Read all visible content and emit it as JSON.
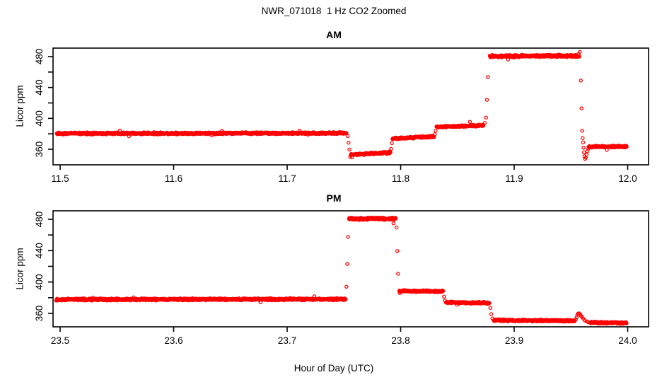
{
  "title": "NWR_071018  1 Hz CO2 Zoomed",
  "x_axis_label": "Hour of Day (UTC)",
  "colors": {
    "points": "#FF0000",
    "axis": "#000000",
    "background": "#FFFFFF"
  },
  "marker": "open-circle",
  "chart_data": [
    {
      "type": "scatter",
      "panel": "AM",
      "title": "AM",
      "ylabel": "Licor ppm",
      "xlabel": "",
      "grid": false,
      "legend": null,
      "xlim": [
        11.49,
        12.02
      ],
      "ylim": [
        340,
        491
      ],
      "x_ticks": [
        {
          "v": 11.5,
          "label": "11.5"
        },
        {
          "v": 11.6,
          "label": "11.6"
        },
        {
          "v": 11.7,
          "label": "11.7"
        },
        {
          "v": 11.8,
          "label": "11.8"
        },
        {
          "v": 11.9,
          "label": "11.9"
        },
        {
          "v": 12.0,
          "label": "12.0"
        }
      ],
      "y_ticks": [
        {
          "v": 360,
          "label": "360"
        },
        {
          "v": 380,
          "label": ""
        },
        {
          "v": 400,
          "label": "400"
        },
        {
          "v": 420,
          "label": ""
        },
        {
          "v": 440,
          "label": "440"
        },
        {
          "v": 460,
          "label": ""
        },
        {
          "v": 480,
          "label": "480"
        }
      ],
      "series": [
        {
          "name": "1 Hz CO2",
          "sample_rate_hz": 1,
          "segments": [
            {
              "t0": 11.497,
              "t1": 11.7524,
              "v0": 380.5,
              "v1": 380.9,
              "noise": 1.5
            },
            {
              "t0": 11.756,
              "t1": 11.791,
              "v0": 353.0,
              "v1": 355.8,
              "noise": 1.5
            },
            {
              "t0": 11.7928,
              "t1": 11.8295,
              "v0": 373.8,
              "v1": 376.5,
              "noise": 1.4
            },
            {
              "t0": 11.8315,
              "t1": 11.873,
              "v0": 388.8,
              "v1": 391.0,
              "noise": 1.4
            },
            {
              "t0": 11.8785,
              "t1": 11.9575,
              "v0": 480.6,
              "v1": 480.9,
              "noise": 1.8
            },
            {
              "t0": 11.9655,
              "t1": 11.999,
              "v0": 363.3,
              "v1": 363.6,
              "noise": 1.4
            }
          ],
          "transition_points": [
            [
              11.7534,
              377.0
            ],
            [
              11.7541,
              368.5
            ],
            [
              11.7549,
              359.5
            ],
            [
              11.7556,
              350.5
            ],
            [
              11.757,
              349.5
            ],
            [
              11.7916,
              360.5
            ],
            [
              11.7922,
              367.8
            ],
            [
              11.8301,
              379.5
            ],
            [
              11.8308,
              384.0
            ],
            [
              11.874,
              394.0
            ],
            [
              11.8752,
              401.0
            ],
            [
              11.876,
              424.0
            ],
            [
              11.8768,
              453.5
            ],
            [
              11.9568,
              483.5
            ],
            [
              11.9578,
              486.0
            ],
            [
              11.9587,
              449.0
            ],
            [
              11.9593,
              413.0
            ],
            [
              11.9599,
              384.0
            ],
            [
              11.9603,
              374.5
            ],
            [
              11.9607,
              369.0
            ],
            [
              11.9611,
              362.0
            ],
            [
              11.9615,
              356.0
            ],
            [
              11.9619,
              351.0
            ],
            [
              11.9624,
              347.5
            ],
            [
              11.9631,
              349.0
            ],
            [
              11.9638,
              353.0
            ],
            [
              11.9645,
              357.5
            ],
            [
              11.9652,
              360.5
            ],
            [
              11.9659,
              362.5
            ]
          ]
        }
      ]
    },
    {
      "type": "scatter",
      "panel": "PM",
      "title": "PM",
      "ylabel": "Licor ppm",
      "xlabel": "Hour of Day (UTC)",
      "grid": false,
      "legend": null,
      "xlim": [
        23.49,
        24.02
      ],
      "ylim": [
        343,
        491
      ],
      "x_ticks": [
        {
          "v": 23.5,
          "label": "23.5"
        },
        {
          "v": 23.6,
          "label": "23.6"
        },
        {
          "v": 23.7,
          "label": "23.7"
        },
        {
          "v": 23.8,
          "label": "23.8"
        },
        {
          "v": 23.9,
          "label": "23.9"
        },
        {
          "v": 24.0,
          "label": "24.0"
        }
      ],
      "y_ticks": [
        {
          "v": 360,
          "label": "360"
        },
        {
          "v": 380,
          "label": ""
        },
        {
          "v": 400,
          "label": "400"
        },
        {
          "v": 420,
          "label": ""
        },
        {
          "v": 440,
          "label": "440"
        },
        {
          "v": 460,
          "label": ""
        },
        {
          "v": 480,
          "label": "480"
        }
      ],
      "series": [
        {
          "name": "1 Hz CO2",
          "sample_rate_hz": 1,
          "segments": [
            {
              "t0": 23.4965,
              "t1": 23.7515,
              "v0": 377.7,
              "v1": 378.1,
              "noise": 1.5
            },
            {
              "t0": 23.7545,
              "t1": 23.7955,
              "v0": 480.6,
              "v1": 480.9,
              "noise": 1.8
            },
            {
              "t0": 23.7988,
              "t1": 23.8375,
              "v0": 388.6,
              "v1": 388.0,
              "noise": 1.4
            },
            {
              "t0": 23.8398,
              "t1": 23.8782,
              "v0": 374.0,
              "v1": 373.2,
              "noise": 1.4
            },
            {
              "t0": 23.882,
              "t1": 23.9535,
              "v0": 351.2,
              "v1": 350.7,
              "noise": 1.4
            },
            {
              "t0": 23.9668,
              "t1": 23.999,
              "v0": 348.3,
              "v1": 347.8,
              "noise": 1.4
            }
          ],
          "transition_points": [
            [
              23.7522,
              394.0
            ],
            [
              23.7529,
              423.0
            ],
            [
              23.7537,
              457.5
            ],
            [
              23.7963,
              469.5
            ],
            [
              23.797,
              439.5
            ],
            [
              23.7977,
              410.5
            ],
            [
              23.7992,
              386.0
            ],
            [
              23.8382,
              381.5
            ],
            [
              23.839,
              376.5
            ],
            [
              23.879,
              367.0
            ],
            [
              23.8798,
              359.0
            ],
            [
              23.8808,
              353.5
            ],
            [
              23.9543,
              352.5
            ],
            [
              23.955,
              355.0
            ],
            [
              23.9557,
              358.0
            ],
            [
              23.9564,
              359.8
            ],
            [
              23.9572,
              360.0
            ],
            [
              23.958,
              358.8
            ],
            [
              23.9589,
              357.0
            ],
            [
              23.9598,
              355.2
            ],
            [
              23.9609,
              353.2
            ],
            [
              23.9622,
              351.2
            ],
            [
              23.9637,
              349.8
            ],
            [
              23.9652,
              348.8
            ]
          ]
        }
      ]
    }
  ]
}
